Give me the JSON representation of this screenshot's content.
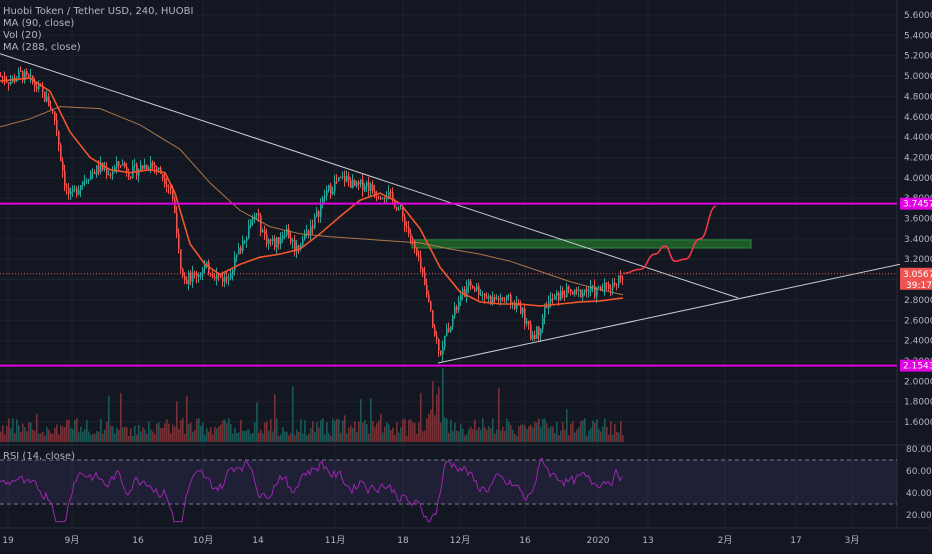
{
  "legend": {
    "symbol": "Huobi Token / Tether USD, 240, HUOBI",
    "ma1": "MA (90, close)",
    "vol": "Vol (20)",
    "ma2": "MA (288, close)",
    "rsi": "RSI (14, close)"
  },
  "colors": {
    "background": "#131722",
    "grid": "#1e222d",
    "up": "#26a69a",
    "down": "#ef5350",
    "ma90": "#f2552c",
    "ma288": "#c8874e",
    "magenta": "#e100e1",
    "trend": "#c9cdd6",
    "zone": "#1e5a2a",
    "rsi": "#9c27b0"
  },
  "chart_data": {
    "type": "candlestick",
    "price_axis": {
      "ticks": [
        "5.6000",
        "5.4000",
        "5.2000",
        "5.0000",
        "4.8000",
        "4.6000",
        "4.4000",
        "4.2000",
        "4.0000",
        "3.8000",
        "3.6000",
        "3.4000",
        "3.2000",
        "3.0000",
        "2.8000",
        "2.6000",
        "2.4000",
        "2.2000",
        "2.0000",
        "1.8000",
        "1.6000"
      ],
      "ylim": [
        1.45,
        5.7
      ],
      "scale": "linear"
    },
    "time_axis": {
      "ticks": [
        "19",
        "9月",
        "16",
        "10月",
        "14",
        "11月",
        "18",
        "12月",
        "16",
        "2020",
        "13",
        "2月",
        "17",
        "3月"
      ]
    },
    "horizontal_levels": [
      {
        "label": "3.7457",
        "value": 3.7457,
        "color": "#e100e1"
      },
      {
        "label": "2.1543",
        "value": 2.1543,
        "color": "#e100e1"
      }
    ],
    "last_price": {
      "label": "3.0567",
      "sub": "39:17",
      "value": 3.0567
    },
    "resistance_zone": {
      "low": 3.31,
      "high": 3.39
    },
    "price_path": [
      [
        0,
        5.0
      ],
      [
        10,
        4.95
      ],
      [
        20,
        5.02
      ],
      [
        30,
        4.95
      ],
      [
        40,
        4.85
      ],
      [
        50,
        4.7
      ],
      [
        55,
        4.55
      ],
      [
        60,
        4.2
      ],
      [
        65,
        3.9
      ],
      [
        70,
        3.8
      ],
      [
        80,
        3.95
      ],
      [
        90,
        4.05
      ],
      [
        100,
        4.1
      ],
      [
        110,
        4.05
      ],
      [
        120,
        4.15
      ],
      [
        130,
        4.05
      ],
      [
        140,
        4.1
      ],
      [
        150,
        4.15
      ],
      [
        160,
        4.05
      ],
      [
        170,
        3.9
      ],
      [
        175,
        3.6
      ],
      [
        180,
        3.15
      ],
      [
        185,
        3.0
      ],
      [
        195,
        3.05
      ],
      [
        205,
        3.12
      ],
      [
        215,
        3.05
      ],
      [
        225,
        3.0
      ],
      [
        235,
        3.2
      ],
      [
        245,
        3.45
      ],
      [
        255,
        3.65
      ],
      [
        265,
        3.4
      ],
      [
        275,
        3.35
      ],
      [
        285,
        3.5
      ],
      [
        295,
        3.3
      ],
      [
        305,
        3.45
      ],
      [
        315,
        3.6
      ],
      [
        325,
        3.85
      ],
      [
        335,
        3.95
      ],
      [
        345,
        4.0
      ],
      [
        355,
        3.9
      ],
      [
        365,
        3.95
      ],
      [
        375,
        3.85
      ],
      [
        385,
        3.85
      ],
      [
        395,
        3.75
      ],
      [
        405,
        3.55
      ],
      [
        412,
        3.35
      ],
      [
        420,
        3.1
      ],
      [
        428,
        2.75
      ],
      [
        434,
        2.45
      ],
      [
        440,
        2.3
      ],
      [
        448,
        2.55
      ],
      [
        455,
        2.7
      ],
      [
        462,
        2.85
      ],
      [
        470,
        2.95
      ],
      [
        480,
        2.88
      ],
      [
        490,
        2.8
      ],
      [
        500,
        2.82
      ],
      [
        510,
        2.78
      ],
      [
        520,
        2.72
      ],
      [
        530,
        2.45
      ],
      [
        538,
        2.5
      ],
      [
        545,
        2.75
      ],
      [
        555,
        2.82
      ],
      [
        565,
        2.88
      ],
      [
        575,
        2.85
      ],
      [
        585,
        2.9
      ],
      [
        595,
        2.88
      ],
      [
        605,
        2.92
      ],
      [
        612,
        2.95
      ],
      [
        618,
        3.02
      ],
      [
        623,
        3.06
      ]
    ],
    "ma90_path": [
      [
        0,
        4.95
      ],
      [
        30,
        4.98
      ],
      [
        50,
        4.85
      ],
      [
        70,
        4.45
      ],
      [
        90,
        4.2
      ],
      [
        110,
        4.08
      ],
      [
        130,
        4.05
      ],
      [
        150,
        4.08
      ],
      [
        165,
        4.05
      ],
      [
        175,
        3.85
      ],
      [
        190,
        3.35
      ],
      [
        205,
        3.15
      ],
      [
        220,
        3.05
      ],
      [
        240,
        3.15
      ],
      [
        260,
        3.22
      ],
      [
        280,
        3.25
      ],
      [
        300,
        3.3
      ],
      [
        320,
        3.45
      ],
      [
        340,
        3.62
      ],
      [
        360,
        3.78
      ],
      [
        380,
        3.85
      ],
      [
        400,
        3.75
      ],
      [
        420,
        3.5
      ],
      [
        440,
        3.12
      ],
      [
        460,
        2.88
      ],
      [
        480,
        2.78
      ],
      [
        500,
        2.76
      ],
      [
        520,
        2.76
      ],
      [
        540,
        2.74
      ],
      [
        560,
        2.76
      ],
      [
        580,
        2.78
      ],
      [
        600,
        2.79
      ],
      [
        623,
        2.82
      ]
    ],
    "ma288_path": [
      [
        0,
        4.5
      ],
      [
        30,
        4.58
      ],
      [
        60,
        4.7
      ],
      [
        100,
        4.68
      ],
      [
        140,
        4.52
      ],
      [
        180,
        4.28
      ],
      [
        210,
        3.95
      ],
      [
        240,
        3.68
      ],
      [
        270,
        3.52
      ],
      [
        300,
        3.45
      ],
      [
        330,
        3.42
      ],
      [
        360,
        3.4
      ],
      [
        390,
        3.38
      ],
      [
        420,
        3.36
      ],
      [
        450,
        3.3
      ],
      [
        480,
        3.25
      ],
      [
        510,
        3.18
      ],
      [
        540,
        3.08
      ],
      [
        570,
        2.98
      ],
      [
        600,
        2.9
      ],
      [
        623,
        2.85
      ]
    ],
    "projection_path": [
      [
        623,
        3.06
      ],
      [
        640,
        3.1
      ],
      [
        655,
        3.25
      ],
      [
        665,
        3.33
      ],
      [
        675,
        3.18
      ],
      [
        685,
        3.2
      ],
      [
        700,
        3.4
      ],
      [
        716,
        3.72
      ]
    ],
    "trendlines": [
      {
        "name": "descending",
        "from": [
          0,
          5.22
        ],
        "to": [
          738,
          2.82
        ]
      },
      {
        "name": "ascending",
        "from": [
          438,
          2.18
        ],
        "to": [
          900,
          3.15
        ]
      }
    ],
    "volume_seed": 7,
    "rsi": {
      "ticks": [
        "80.00",
        "60.00",
        "40.00",
        "20.00"
      ],
      "ylim": [
        10,
        90
      ],
      "overbought": 70,
      "oversold": 30
    }
  }
}
